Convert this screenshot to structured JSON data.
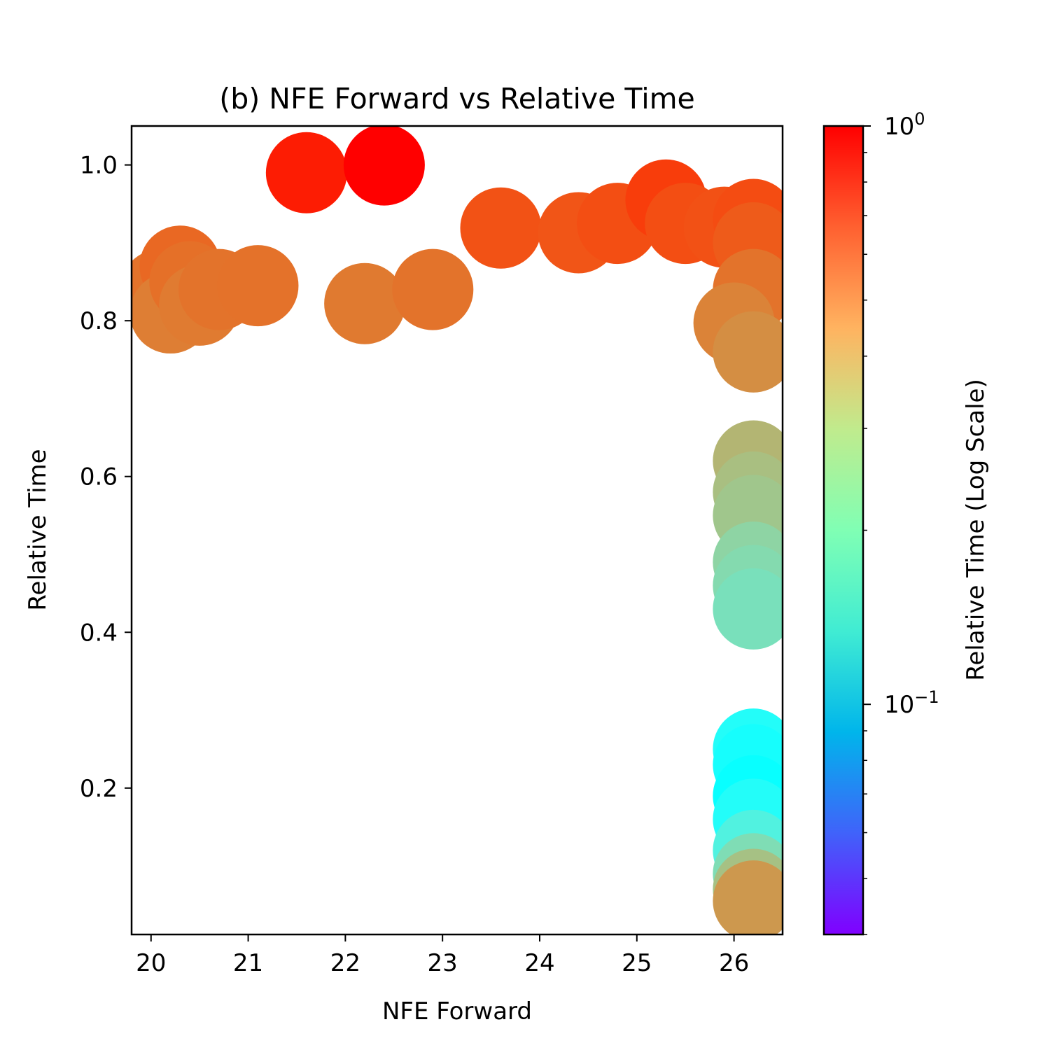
{
  "chart_data": {
    "type": "scatter",
    "title": "(b) NFE Forward vs Relative Time",
    "xlabel": "NFE Forward",
    "ylabel": "Relative Time",
    "xlim": [
      19.8,
      26.5
    ],
    "ylim": [
      0.012,
      1.05
    ],
    "x_ticks": [
      20,
      21,
      22,
      23,
      24,
      25,
      26
    ],
    "x_tick_labels": [
      "20",
      "21",
      "22",
      "23",
      "24",
      "25",
      "26"
    ],
    "y_ticks": [
      0.2,
      0.4,
      0.6,
      0.8,
      1.0
    ],
    "y_tick_labels": [
      "0.2",
      "0.4",
      "0.6",
      "0.8",
      "1.0"
    ],
    "grid": false,
    "colormap": "rainbow",
    "colorbar": {
      "label": "Relative Time (Log Scale)",
      "scale": "log",
      "range": [
        0.04,
        1.0
      ],
      "major_ticks": [
        0.1,
        1.0
      ],
      "major_tick_base": [
        "10",
        "10"
      ],
      "major_tick_exp": [
        "−1",
        "0"
      ],
      "minor_ticks": [
        0.04,
        0.05,
        0.06,
        0.07,
        0.08,
        0.09,
        0.2,
        0.3,
        0.4,
        0.5,
        0.6,
        0.7,
        0.8,
        0.9
      ]
    },
    "points": [
      {
        "x": 20.1,
        "y": 0.84
      },
      {
        "x": 20.3,
        "y": 0.87
      },
      {
        "x": 20.2,
        "y": 0.81
      },
      {
        "x": 20.4,
        "y": 0.85
      },
      {
        "x": 20.5,
        "y": 0.82
      },
      {
        "x": 20.7,
        "y": 0.84
      },
      {
        "x": 21.1,
        "y": 0.845
      },
      {
        "x": 21.6,
        "y": 0.99
      },
      {
        "x": 22.2,
        "y": 0.822
      },
      {
        "x": 22.4,
        "y": 1.0
      },
      {
        "x": 22.9,
        "y": 0.84
      },
      {
        "x": 23.6,
        "y": 0.919
      },
      {
        "x": 24.4,
        "y": 0.913
      },
      {
        "x": 24.8,
        "y": 0.925
      },
      {
        "x": 25.3,
        "y": 0.955
      },
      {
        "x": 25.5,
        "y": 0.925
      },
      {
        "x": 25.9,
        "y": 0.92
      },
      {
        "x": 26.2,
        "y": 0.93
      },
      {
        "x": 26.2,
        "y": 0.9
      },
      {
        "x": 26.2,
        "y": 0.84
      },
      {
        "x": 26.0,
        "y": 0.797
      },
      {
        "x": 26.2,
        "y": 0.76
      },
      {
        "x": 26.2,
        "y": 0.62
      },
      {
        "x": 26.2,
        "y": 0.58
      },
      {
        "x": 26.2,
        "y": 0.55
      },
      {
        "x": 26.2,
        "y": 0.49
      },
      {
        "x": 26.2,
        "y": 0.46
      },
      {
        "x": 26.2,
        "y": 0.43
      },
      {
        "x": 26.2,
        "y": 0.25
      },
      {
        "x": 26.2,
        "y": 0.23
      },
      {
        "x": 26.2,
        "y": 0.19
      },
      {
        "x": 26.2,
        "y": 0.16
      },
      {
        "x": 26.2,
        "y": 0.12
      },
      {
        "x": 26.2,
        "y": 0.09
      },
      {
        "x": 26.2,
        "y": 0.07
      },
      {
        "x": 26.2,
        "y": 0.055
      }
    ]
  }
}
